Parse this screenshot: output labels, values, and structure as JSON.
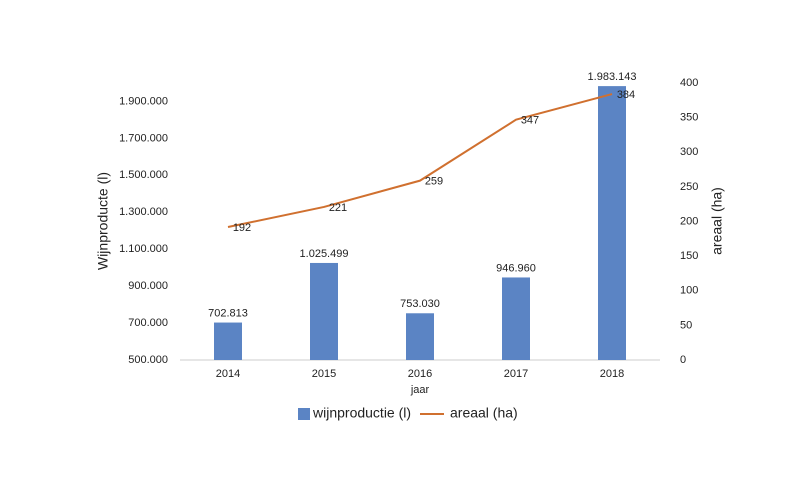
{
  "chart_data": {
    "type": "bar",
    "categories": [
      "2014",
      "2015",
      "2016",
      "2017",
      "2018"
    ],
    "x_label": "jaar",
    "y_label": "Wijnproducte (l)",
    "y2_label": "areaal (ha)",
    "series": [
      {
        "name": "wijnproductie (l)",
        "type": "bar",
        "color": "#5b84c4",
        "values": [
          702813,
          1025499,
          753030,
          946960,
          1983143
        ],
        "value_labels": [
          "702.813",
          "1.025.499",
          "753.030",
          "946.960",
          "1.983.143"
        ]
      },
      {
        "name": "areaal (ha)",
        "type": "line",
        "axis": "y2",
        "color": "#d0702f",
        "values": [
          192,
          221,
          259,
          347,
          384
        ]
      }
    ],
    "ylim": [
      500000,
      2000000
    ],
    "yticks": [
      {
        "value": 500000,
        "label": "500.000"
      },
      {
        "value": 700000,
        "label": "700.000"
      },
      {
        "value": 900000,
        "label": "900.000"
      },
      {
        "value": 1100000,
        "label": "1.100.000"
      },
      {
        "value": 1300000,
        "label": "1.300.000"
      },
      {
        "value": 1500000,
        "label": "1.500.000"
      },
      {
        "value": 1700000,
        "label": "1.700.000"
      },
      {
        "value": 1900000,
        "label": "1.900.000"
      }
    ],
    "y2lim": [
      0,
      400
    ],
    "y2ticks": [
      0,
      50,
      100,
      150,
      200,
      250,
      300,
      350,
      400
    ],
    "legend": "bottom"
  }
}
